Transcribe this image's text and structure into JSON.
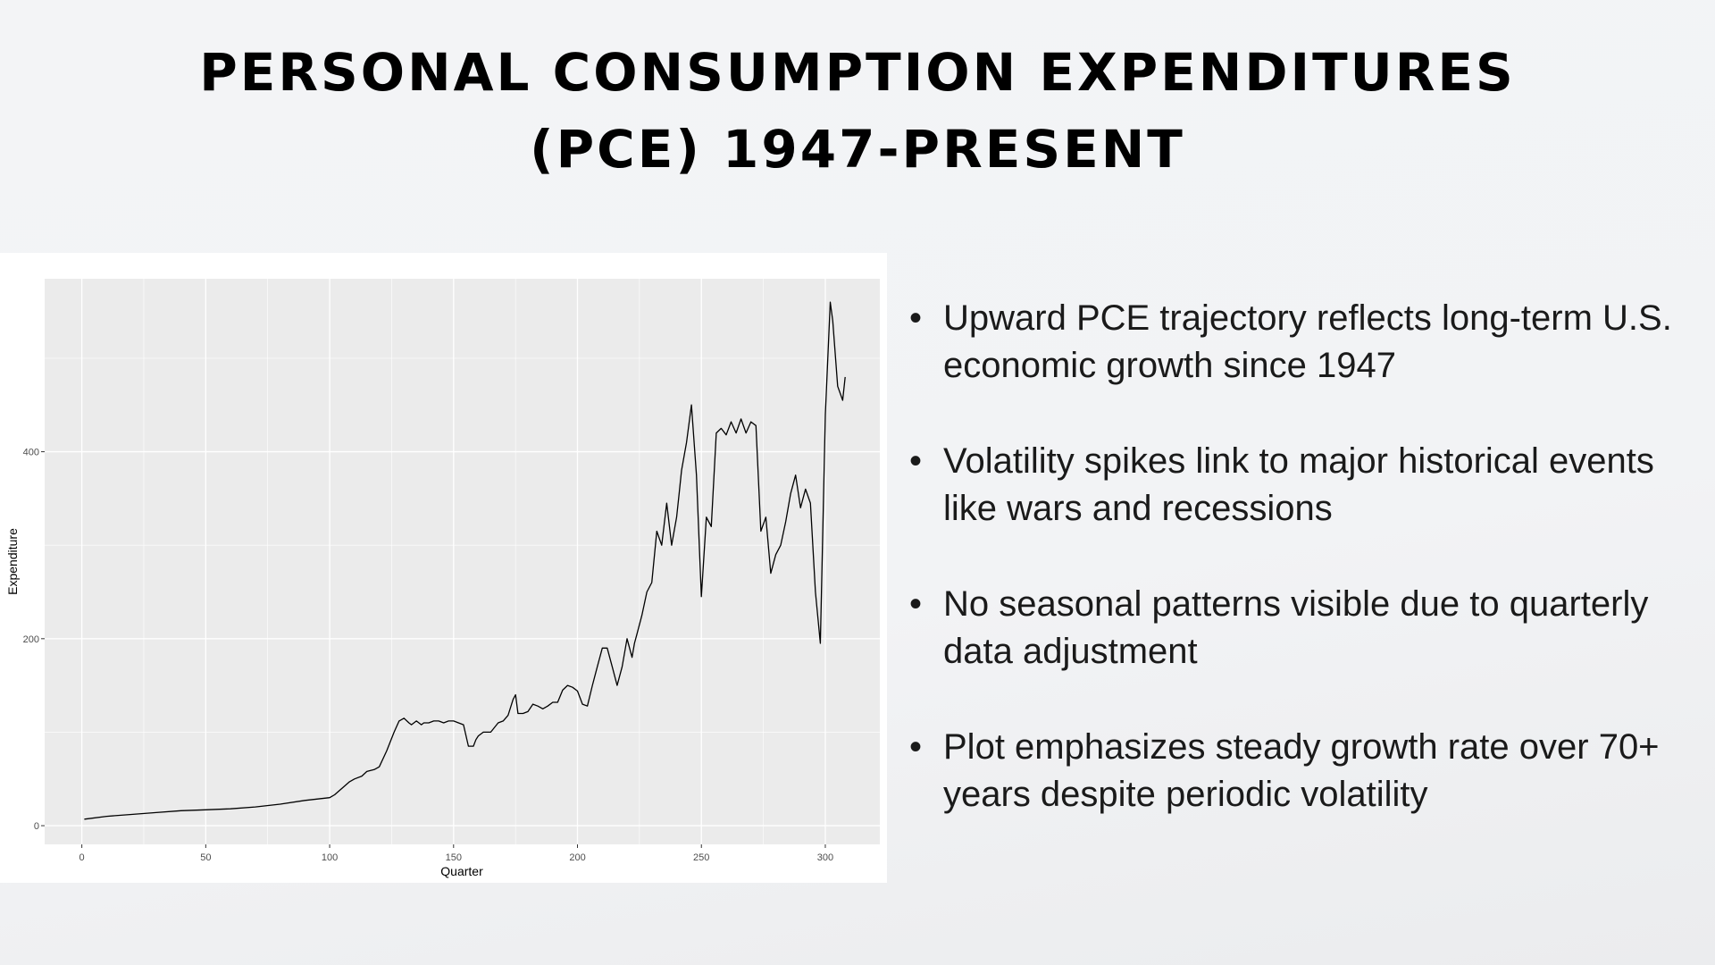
{
  "slide": {
    "title_line1": "PERSONAL CONSUMPTION EXPENDITURES",
    "title_line2": "(PCE) 1947-PRESENT",
    "bullet_symbol": "•",
    "bullets": [
      "Upward PCE trajectory reflects long-term U.S. economic growth since 1947",
      "Volatility spikes link to major historical events like wars and recessions",
      "No seasonal patterns visible due to quarterly data adjustment",
      "Plot emphasizes steady growth rate over 70+ years despite periodic volatility"
    ]
  },
  "chart_data": {
    "type": "line",
    "title": "",
    "xlabel": "Quarter",
    "ylabel": "Expenditure",
    "xlim": [
      -15,
      322
    ],
    "ylim": [
      -20,
      585
    ],
    "xticks": [
      0,
      50,
      100,
      150,
      200,
      250,
      300
    ],
    "yticks": [
      0,
      200,
      400
    ],
    "grid": true,
    "legend": "none",
    "colors": {
      "panel": "#ebebeb",
      "grid": "#ffffff",
      "line": "#000000",
      "text": "#4d4d4d"
    },
    "series": [
      {
        "x": [
          1,
          10,
          20,
          30,
          40,
          50,
          60,
          70,
          80,
          90,
          100,
          102,
          105,
          108,
          110,
          113,
          115,
          118,
          120,
          123,
          126,
          128,
          130,
          132,
          133,
          135,
          137,
          138,
          140,
          142,
          144,
          146,
          148,
          150,
          152,
          154,
          156,
          158,
          159,
          160,
          162,
          165,
          168,
          170,
          172,
          174,
          175,
          176,
          178,
          180,
          182,
          184,
          186,
          188,
          190,
          192,
          194,
          196,
          198,
          200,
          202,
          204,
          206,
          208,
          210,
          212,
          214,
          216,
          218,
          220,
          222,
          223,
          224,
          226,
          228,
          230,
          232,
          234,
          236,
          238,
          240,
          241,
          242,
          244,
          246,
          248,
          250,
          252,
          254,
          256,
          258,
          260,
          262,
          264,
          266,
          268,
          270,
          272,
          274,
          276,
          278,
          280,
          282,
          284,
          286,
          288,
          290,
          292,
          294,
          296,
          298,
          300,
          302,
          303,
          305,
          307,
          308
        ],
        "y": [
          7,
          10,
          12,
          14,
          16,
          17,
          18,
          20,
          23,
          27,
          30,
          33,
          40,
          47,
          50,
          53,
          58,
          60,
          63,
          80,
          100,
          112,
          115,
          110,
          108,
          112,
          108,
          110,
          110,
          112,
          112,
          110,
          112,
          112,
          110,
          108,
          85,
          85,
          92,
          96,
          100,
          100,
          110,
          112,
          118,
          135,
          140,
          120,
          120,
          122,
          130,
          128,
          125,
          128,
          132,
          132,
          145,
          150,
          148,
          144,
          130,
          128,
          150,
          170,
          190,
          190,
          170,
          150,
          170,
          200,
          180,
          195,
          205,
          225,
          250,
          260,
          315,
          300,
          345,
          300,
          330,
          355,
          380,
          410,
          450,
          375,
          245,
          330,
          320,
          420,
          425,
          418,
          432,
          420,
          435,
          420,
          432,
          428,
          315,
          330,
          270,
          290,
          300,
          325,
          355,
          375,
          340,
          360,
          345,
          250,
          195,
          440,
          560,
          540,
          470,
          455,
          480
        ]
      }
    ]
  }
}
